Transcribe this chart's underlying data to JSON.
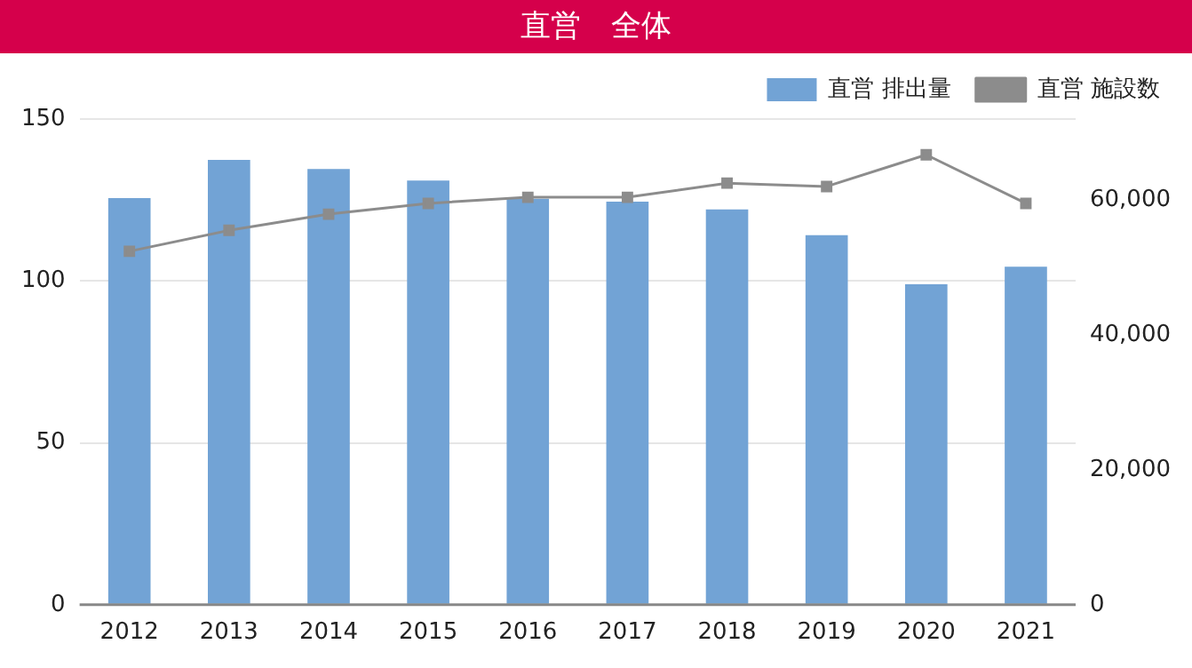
{
  "chart_data": {
    "type": "bar",
    "title": "直営　全体",
    "categories": [
      "2012",
      "2013",
      "2014",
      "2015",
      "2016",
      "2017",
      "2018",
      "2019",
      "2020",
      "2021"
    ],
    "series": [
      {
        "name": "直営 排出量",
        "color": "#72a3d5",
        "values": [
          125.6,
          137.4,
          134.6,
          131.0,
          125.4,
          124.5,
          122.1,
          114.1,
          99.0,
          104.4
        ]
      },
      {
        "name": "直営 施設数",
        "type": "line",
        "axis": "y2",
        "color": "#8c8c8c",
        "marker": "square",
        "values": [
          52400,
          55500,
          57900,
          59500,
          60400,
          60400,
          62500,
          62000,
          66700,
          59500
        ]
      }
    ],
    "ylim": [
      0,
      150
    ],
    "yticks": [
      0,
      50,
      100,
      150
    ],
    "y2lim": [
      0,
      72000
    ],
    "y2ticks": [
      0,
      {
        "value": 20000,
        "label": "20,000"
      },
      {
        "value": 40000,
        "label": "40,000"
      },
      {
        "value": 60000,
        "label": "60,000"
      }
    ],
    "grid": "y",
    "legend": "top right"
  }
}
